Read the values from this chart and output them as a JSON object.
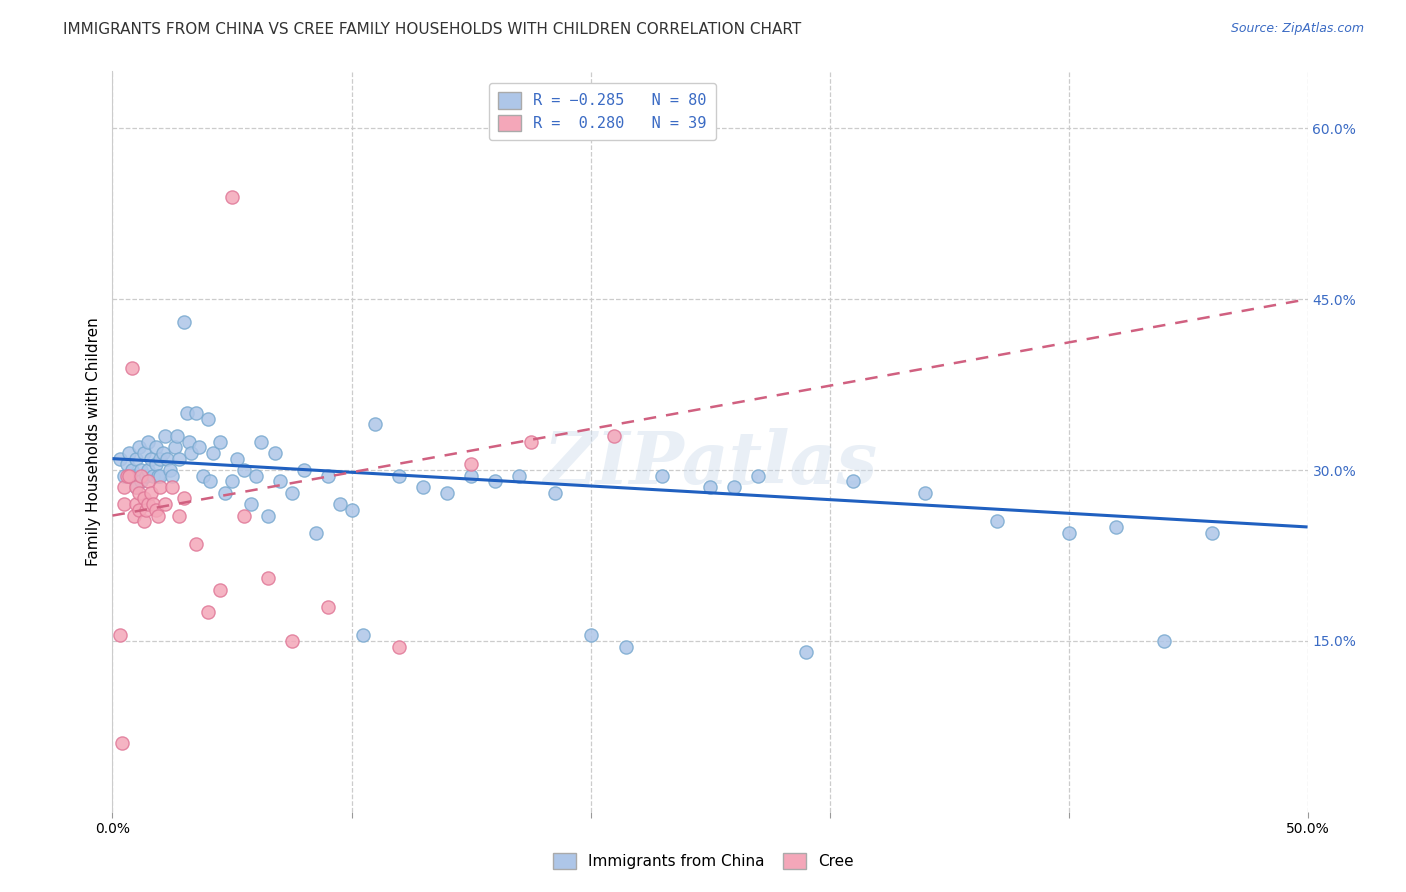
{
  "title": "IMMIGRANTS FROM CHINA VS CREE FAMILY HOUSEHOLDS WITH CHILDREN CORRELATION CHART",
  "source": "Source: ZipAtlas.com",
  "ylabel": "Family Households with Children",
  "xlim": [
    0.0,
    0.5
  ],
  "ylim": [
    0.0,
    0.65
  ],
  "xticks": [
    0.0,
    0.1,
    0.2,
    0.3,
    0.4,
    0.5
  ],
  "xticklabels": [
    "0.0%",
    "",
    "",
    "",
    "",
    "50.0%"
  ],
  "yticks_right": [
    0.15,
    0.3,
    0.45,
    0.6
  ],
  "ytick_right_labels": [
    "15.0%",
    "30.0%",
    "45.0%",
    "60.0%"
  ],
  "blue_color": "#aec6e8",
  "pink_color": "#f4a7b9",
  "blue_edge_color": "#7aaad0",
  "pink_edge_color": "#e07898",
  "blue_line_color": "#2060c0",
  "pink_line_color": "#d06080",
  "background_color": "#ffffff",
  "grid_color": "#cccccc",
  "watermark": "ZIPatlas",
  "blue_scatter_x": [
    0.003,
    0.005,
    0.006,
    0.007,
    0.008,
    0.009,
    0.01,
    0.01,
    0.011,
    0.012,
    0.012,
    0.013,
    0.014,
    0.015,
    0.015,
    0.016,
    0.017,
    0.018,
    0.018,
    0.019,
    0.02,
    0.02,
    0.021,
    0.022,
    0.023,
    0.024,
    0.025,
    0.026,
    0.027,
    0.028,
    0.03,
    0.031,
    0.032,
    0.033,
    0.035,
    0.036,
    0.038,
    0.04,
    0.041,
    0.042,
    0.045,
    0.047,
    0.05,
    0.052,
    0.055,
    0.058,
    0.06,
    0.062,
    0.065,
    0.068,
    0.07,
    0.075,
    0.08,
    0.085,
    0.09,
    0.095,
    0.1,
    0.105,
    0.11,
    0.12,
    0.13,
    0.14,
    0.15,
    0.16,
    0.17,
    0.185,
    0.2,
    0.215,
    0.23,
    0.25,
    0.26,
    0.27,
    0.29,
    0.31,
    0.34,
    0.37,
    0.4,
    0.42,
    0.44,
    0.46
  ],
  "blue_scatter_y": [
    0.31,
    0.295,
    0.305,
    0.315,
    0.3,
    0.295,
    0.31,
    0.285,
    0.32,
    0.3,
    0.29,
    0.315,
    0.295,
    0.325,
    0.3,
    0.31,
    0.295,
    0.32,
    0.305,
    0.295,
    0.31,
    0.295,
    0.315,
    0.33,
    0.31,
    0.3,
    0.295,
    0.32,
    0.33,
    0.31,
    0.43,
    0.35,
    0.325,
    0.315,
    0.35,
    0.32,
    0.295,
    0.345,
    0.29,
    0.315,
    0.325,
    0.28,
    0.29,
    0.31,
    0.3,
    0.27,
    0.295,
    0.325,
    0.26,
    0.315,
    0.29,
    0.28,
    0.3,
    0.245,
    0.295,
    0.27,
    0.265,
    0.155,
    0.34,
    0.295,
    0.285,
    0.28,
    0.295,
    0.29,
    0.295,
    0.28,
    0.155,
    0.145,
    0.295,
    0.285,
    0.285,
    0.295,
    0.14,
    0.29,
    0.28,
    0.255,
    0.245,
    0.25,
    0.15,
    0.245
  ],
  "pink_scatter_x": [
    0.003,
    0.004,
    0.005,
    0.005,
    0.006,
    0.007,
    0.008,
    0.009,
    0.01,
    0.01,
    0.011,
    0.011,
    0.012,
    0.013,
    0.013,
    0.014,
    0.015,
    0.015,
    0.016,
    0.017,
    0.018,
    0.019,
    0.02,
    0.022,
    0.025,
    0.028,
    0.03,
    0.035,
    0.04,
    0.045,
    0.05,
    0.055,
    0.065,
    0.075,
    0.09,
    0.12,
    0.15,
    0.175,
    0.21
  ],
  "pink_scatter_y": [
    0.155,
    0.06,
    0.285,
    0.27,
    0.295,
    0.295,
    0.39,
    0.26,
    0.285,
    0.27,
    0.28,
    0.265,
    0.295,
    0.275,
    0.255,
    0.265,
    0.29,
    0.27,
    0.28,
    0.27,
    0.265,
    0.26,
    0.285,
    0.27,
    0.285,
    0.26,
    0.275,
    0.235,
    0.175,
    0.195,
    0.54,
    0.26,
    0.205,
    0.15,
    0.18,
    0.145,
    0.305,
    0.325,
    0.33
  ],
  "blue_trend_x": [
    0.0,
    0.5
  ],
  "blue_trend_y": [
    0.31,
    0.25
  ],
  "pink_trend_x": [
    0.0,
    0.5
  ],
  "pink_trend_y": [
    0.26,
    0.45
  ]
}
